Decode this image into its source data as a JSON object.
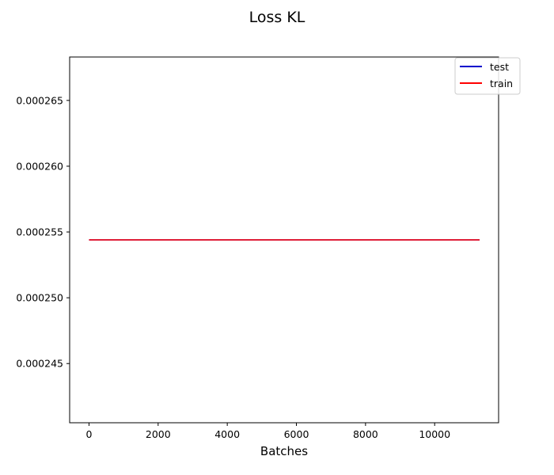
{
  "chart_data": {
    "type": "line",
    "title": "Loss KL",
    "xlabel": "Batches",
    "ylabel": "",
    "xlim": [
      -560,
      11850
    ],
    "ylim": [
      0.0002405,
      0.0002683
    ],
    "x_ticks": [
      0,
      2000,
      4000,
      6000,
      8000,
      10000
    ],
    "x_tick_labels": [
      "0",
      "2000",
      "4000",
      "6000",
      "8000",
      "10000"
    ],
    "y_ticks": [
      0.000245,
      0.00025,
      0.000255,
      0.00026,
      0.000265
    ],
    "y_tick_labels": [
      "0.000245",
      "0.000250",
      "0.000255",
      "0.000260",
      "0.000265"
    ],
    "grid": false,
    "legend_position": "top-right",
    "series": [
      {
        "name": "test",
        "color": "#0000cc",
        "x": [
          0,
          11300
        ],
        "y": [
          0.0002544,
          0.0002544
        ]
      },
      {
        "name": "train",
        "color": "#ff0000",
        "x": [
          0,
          11300
        ],
        "y": [
          0.0002544,
          0.0002544
        ]
      }
    ]
  }
}
